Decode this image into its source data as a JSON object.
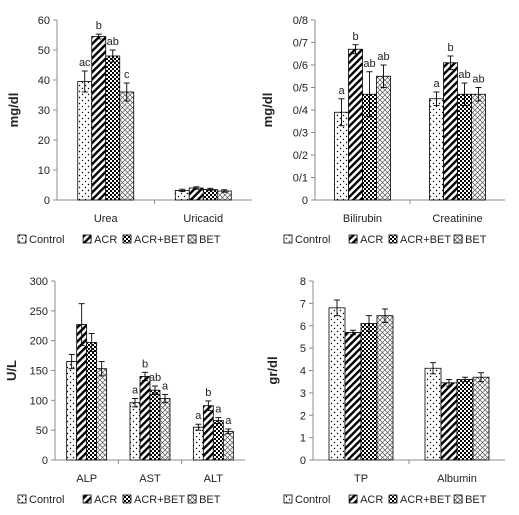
{
  "legend": [
    "Control",
    "ACR",
    "ACR+BET",
    "BET"
  ],
  "colors": {
    "bar_outline": "#000000",
    "error_bar": "#000000",
    "axis": "#8c8c8c",
    "background": "#ffffff"
  },
  "chart_data": [
    {
      "type": "bar",
      "ylabel": "mg/dl",
      "ylim": [
        0,
        60
      ],
      "yticks": [
        "0",
        "10",
        "20",
        "30",
        "40",
        "50",
        "60"
      ],
      "categories": [
        "Urea",
        "Uricacid"
      ],
      "series": [
        {
          "name": "Control",
          "values": [
            39.5,
            3.2
          ],
          "errors": [
            3.5,
            0.4
          ]
        },
        {
          "name": "ACR",
          "values": [
            54.5,
            4.0
          ],
          "errors": [
            0.8,
            0.4
          ]
        },
        {
          "name": "ACR+BET",
          "values": [
            48.0,
            3.5
          ],
          "errors": [
            2.0,
            0.4
          ]
        },
        {
          "name": "BET",
          "values": [
            36.0,
            3.0
          ],
          "errors": [
            3.0,
            0.4
          ]
        }
      ],
      "annotations": [
        [
          "ac",
          ""
        ],
        [
          "b",
          ""
        ],
        [
          "ab",
          ""
        ],
        [
          "c",
          ""
        ]
      ],
      "legend_position": "bottom"
    },
    {
      "type": "bar",
      "ylabel": "mg/dl",
      "ylim": [
        0,
        0.8
      ],
      "yticks": [
        "0",
        "0/1",
        "0/2",
        "0/3",
        "0/4",
        "0/5",
        "0/6",
        "0/7",
        "0/8"
      ],
      "categories": [
        "Bilirubin",
        "Creatinine"
      ],
      "series": [
        {
          "name": "Control",
          "values": [
            0.39,
            0.45
          ],
          "errors": [
            0.06,
            0.03
          ]
        },
        {
          "name": "ACR",
          "values": [
            0.67,
            0.61
          ],
          "errors": [
            0.02,
            0.03
          ]
        },
        {
          "name": "ACR+BET",
          "values": [
            0.47,
            0.47
          ],
          "errors": [
            0.1,
            0.05
          ]
        },
        {
          "name": "BET",
          "values": [
            0.55,
            0.47
          ],
          "errors": [
            0.05,
            0.03
          ]
        }
      ],
      "annotations": [
        [
          "a",
          "a"
        ],
        [
          "b",
          "b"
        ],
        [
          "ab",
          "ab"
        ],
        [
          "ab",
          "ab"
        ]
      ],
      "legend_position": "bottom"
    },
    {
      "type": "bar",
      "ylabel": "U/L",
      "ylim": [
        0,
        300
      ],
      "yticks": [
        "0",
        "50",
        "100",
        "150",
        "200",
        "250",
        "300"
      ],
      "categories": [
        "ALP",
        "AST",
        "ALT"
      ],
      "series": [
        {
          "name": "Control",
          "values": [
            165,
            96,
            55
          ],
          "errors": [
            12,
            7,
            5
          ]
        },
        {
          "name": "ACR",
          "values": [
            227,
            140,
            91
          ],
          "errors": [
            35,
            7,
            8
          ]
        },
        {
          "name": "ACR+BET",
          "values": [
            197,
            117,
            66
          ],
          "errors": [
            15,
            7,
            5
          ]
        },
        {
          "name": "BET",
          "values": [
            153,
            103,
            48
          ],
          "errors": [
            12,
            7,
            4
          ]
        }
      ],
      "annotations": [
        [
          "",
          "a",
          "a"
        ],
        [
          "",
          "b",
          "b"
        ],
        [
          "",
          "ab",
          "a"
        ],
        [
          "",
          "a",
          "a"
        ]
      ],
      "legend_position": "bottom"
    },
    {
      "type": "bar",
      "ylabel": "gr/dl",
      "ylim": [
        0,
        8
      ],
      "yticks": [
        "0",
        "1",
        "2",
        "3",
        "4",
        "5",
        "6",
        "7",
        "8"
      ],
      "categories": [
        "TP",
        "Albumin"
      ],
      "series": [
        {
          "name": "Control",
          "values": [
            6.8,
            4.1
          ],
          "errors": [
            0.35,
            0.25
          ]
        },
        {
          "name": "ACR",
          "values": [
            5.7,
            3.45
          ],
          "errors": [
            0.1,
            0.15
          ]
        },
        {
          "name": "ACR+BET",
          "values": [
            6.1,
            3.6
          ],
          "errors": [
            0.35,
            0.1
          ]
        },
        {
          "name": "BET",
          "values": [
            6.45,
            3.7
          ],
          "errors": [
            0.3,
            0.2
          ]
        }
      ],
      "annotations": [
        [
          "",
          ""
        ],
        [
          "",
          ""
        ],
        [
          "",
          ""
        ],
        [
          "",
          ""
        ]
      ],
      "legend_position": "bottom"
    }
  ]
}
